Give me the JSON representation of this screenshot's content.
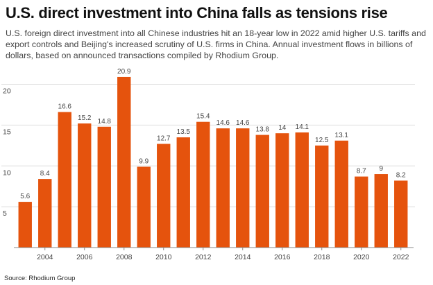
{
  "header": {
    "title": "U.S. direct investment into China falls as tensions rise",
    "subtitle": "U.S. foreign direct investment into all Chinese industries hit an 18-year low in 2022 amid higher U.S. tariffs and export controls and Beijing's increased scrutiny of U.S. firms in China. Annual investment flows in billions of dollars, based on announced transactions compiled by Rhodium Group."
  },
  "footer": {
    "source": "Source: Rhodium Group"
  },
  "colors": {
    "bar": "#e5530d",
    "grid": "#dddddd",
    "axis": "#888888"
  },
  "chart_data": {
    "type": "bar",
    "title": "U.S. direct investment into China falls as tensions rise",
    "categories": [
      "2003",
      "2004",
      "2005",
      "2006",
      "2007",
      "2008",
      "2009",
      "2010",
      "2011",
      "2012",
      "2013",
      "2014",
      "2015",
      "2016",
      "2017",
      "2018",
      "2019",
      "2020",
      "2021",
      "2022"
    ],
    "values": [
      5.6,
      8.4,
      16.6,
      15.2,
      14.8,
      20.9,
      9.9,
      12.7,
      13.5,
      15.4,
      14.6,
      14.6,
      13.8,
      14,
      14.1,
      12.5,
      13.1,
      8.7,
      9,
      8.2
    ],
    "data_labels": [
      "5.6",
      "8.4",
      "16.6",
      "15.2",
      "14.8",
      "20.9",
      "9.9",
      "12.7",
      "13.5",
      "15.4",
      "14.6",
      "14.6",
      "13.8",
      "14",
      "14.1",
      "12.5",
      "13.1",
      "8.7",
      "9",
      "8.2"
    ],
    "x_tick_labels": [
      "2004",
      "2006",
      "2008",
      "2010",
      "2012",
      "2014",
      "2016",
      "2018",
      "2020",
      "2022"
    ],
    "y_ticks": [
      5,
      10,
      15,
      20
    ],
    "y_tick_labels": [
      "5",
      "10",
      "15",
      "20"
    ],
    "ylim": [
      0,
      22
    ],
    "grid": true,
    "xlabel": "",
    "ylabel": ""
  }
}
